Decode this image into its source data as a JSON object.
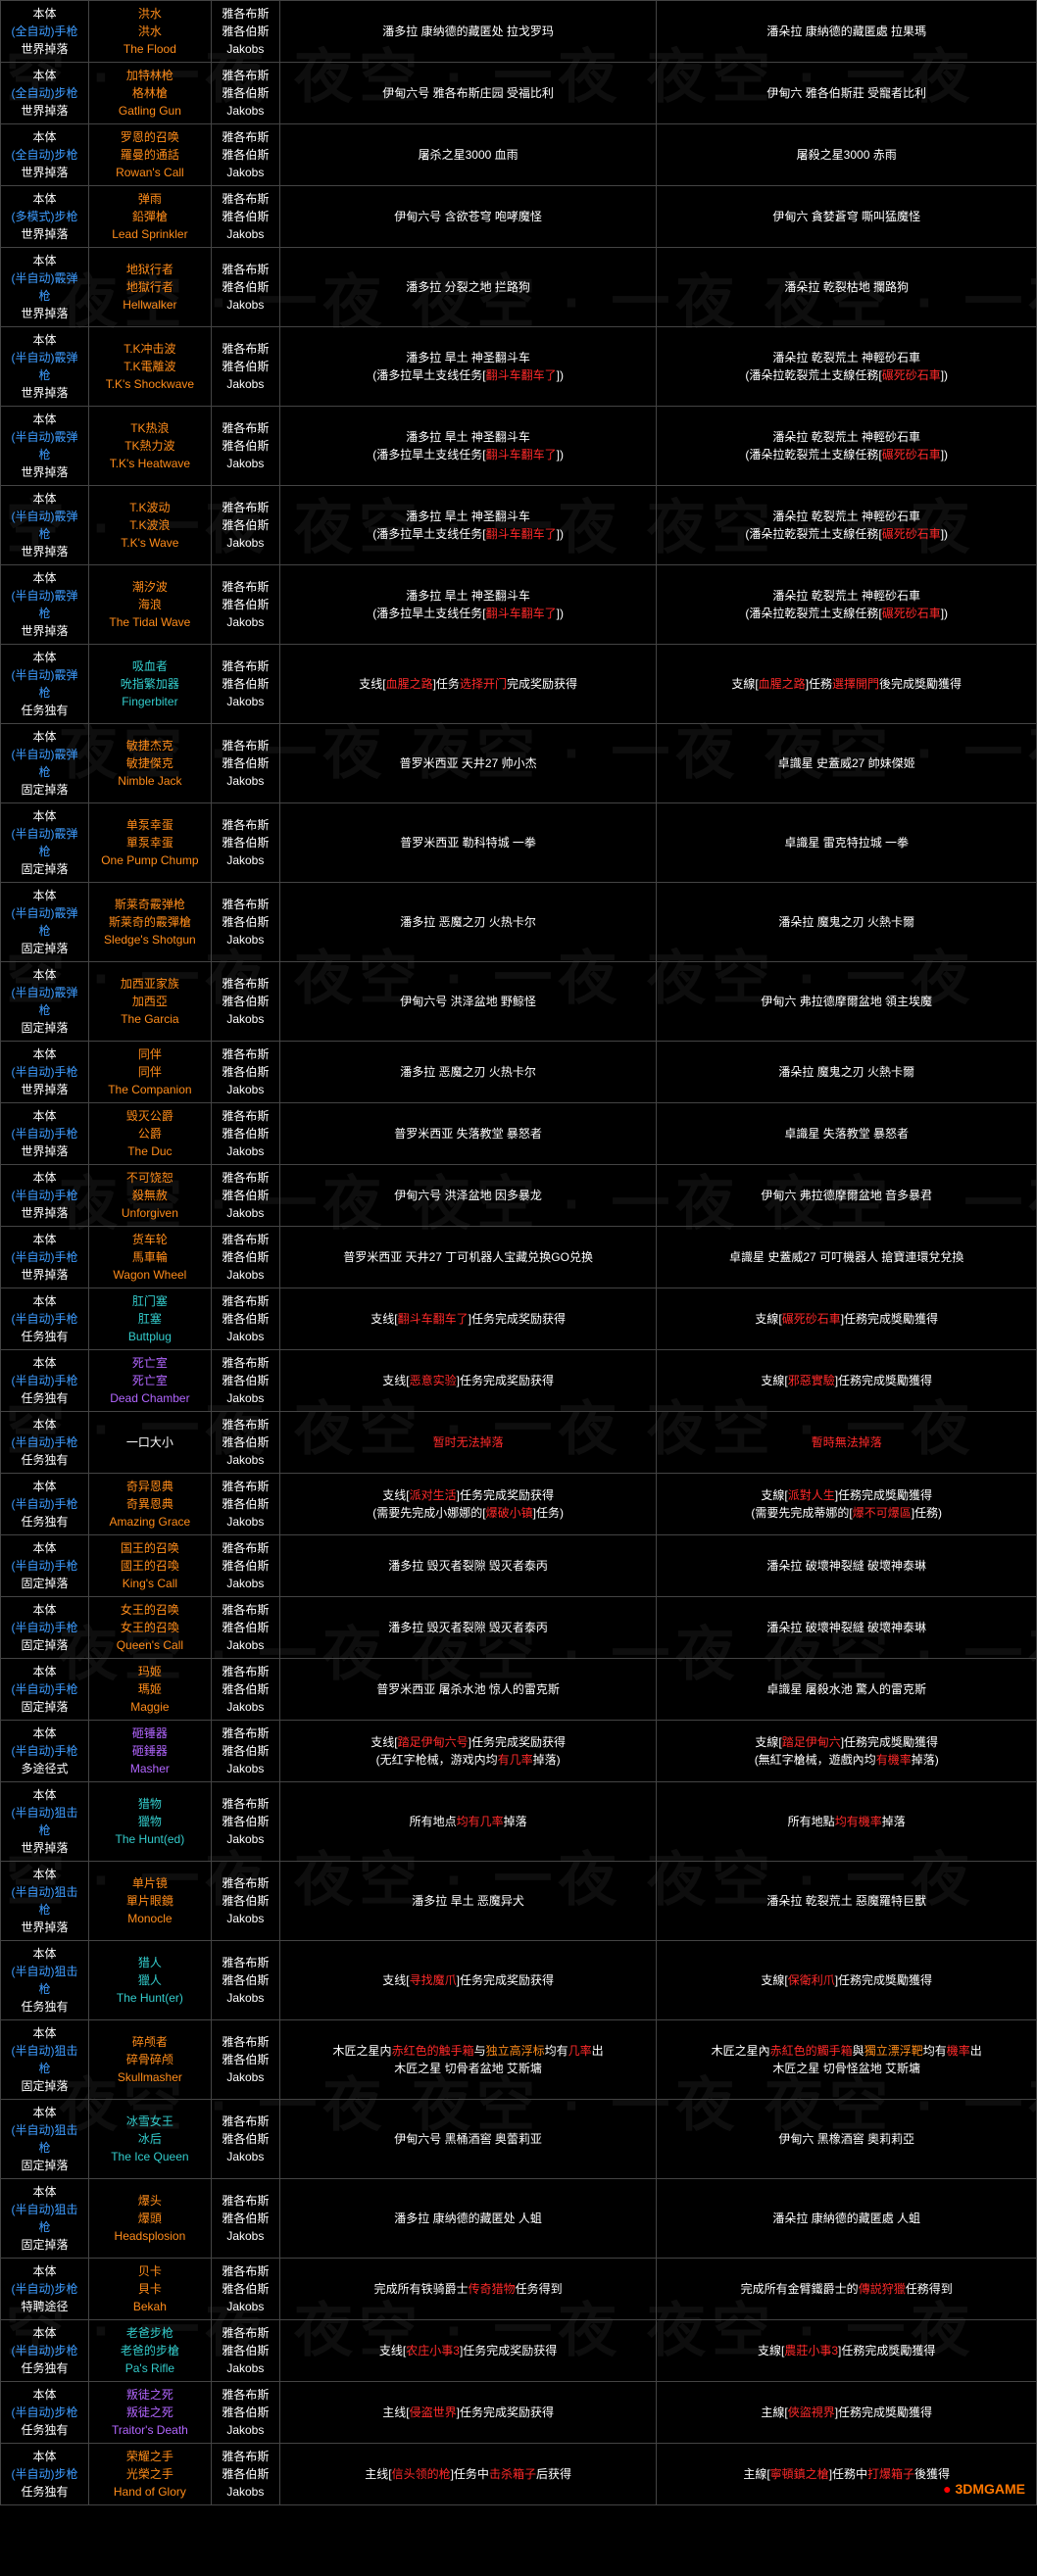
{
  "watermark_text": "夜空 · 一夜",
  "logo": "3DMGAME",
  "colors": {
    "bg": "#000000",
    "blue": "#3d9cff",
    "orange": "#ff8c1a",
    "white": "#ffffff",
    "red": "#ff2a2a",
    "purple": "#b266ff",
    "teal": "#33cccc",
    "border": "#444444"
  },
  "col1_labels": {
    "line1": "本体",
    "line3a": "世界掉落",
    "line3b": "固定掉落",
    "line3c": "任务独有",
    "line3d": "特聘途径",
    "line3e": "多途径式"
  },
  "col3_labels": {
    "l1": "雅各布斯",
    "l2": "雅各伯斯",
    "l3": "Jakobs"
  },
  "rows": [
    {
      "c1b": "(全自动)手枪",
      "c1c": "世界掉落",
      "c2": [
        "洪水",
        "洪水",
        "The Flood"
      ],
      "c2c": "orange",
      "c4": [
        {
          "t": "潘多拉 康纳德的藏匿处 拉戈罗玛"
        }
      ],
      "c5": [
        {
          "t": "潘朵拉 康納德的藏匿處 拉果瑪"
        }
      ]
    },
    {
      "c1b": "(全自动)步枪",
      "c1c": "世界掉落",
      "c2": [
        "加特林枪",
        "格林槍",
        "Gatling Gun"
      ],
      "c2c": "orange",
      "c4": [
        {
          "t": "伊甸六号 雅各布斯庄园 受福比利"
        }
      ],
      "c5": [
        {
          "t": "伊甸六 雅各伯斯莊 受寵者比利"
        }
      ]
    },
    {
      "c1b": "(全自动)步枪",
      "c1c": "世界掉落",
      "c2": [
        "罗恩的召唤",
        "羅曼的通話",
        "Rowan's Call"
      ],
      "c2c": "orange",
      "c4": [
        {
          "t": "屠杀之星3000 血雨"
        }
      ],
      "c5": [
        {
          "t": "屠殺之星3000 赤雨"
        }
      ]
    },
    {
      "c1b": "(多模式)步枪",
      "c1c": "世界掉落",
      "c2": [
        "弹雨",
        "鉛彈槍",
        "Lead Sprinkler"
      ],
      "c2c": "orange",
      "c4": [
        {
          "t": "伊甸六号 含欲苍穹 咆哮魔怪"
        }
      ],
      "c5": [
        {
          "t": "伊甸六 貪婪蒼穹 嘶叫猛魔怪"
        }
      ]
    },
    {
      "c1b": "(半自动)霰弹枪",
      "c1c": "世界掉落",
      "c2": [
        "地狱行者",
        "地獄行者",
        "Hellwalker"
      ],
      "c2c": "orange",
      "c4": [
        {
          "t": "潘多拉 分裂之地 拦路狗"
        }
      ],
      "c5": [
        {
          "t": "潘朵拉 乾裂枯地 攔路狗"
        }
      ]
    },
    {
      "c1b": "(半自动)霰弹枪",
      "c1c": "世界掉落",
      "c2": [
        "T.K冲击波",
        "T.K電離波",
        "T.K's Shockwave"
      ],
      "c2c": "orange",
      "c4": [
        {
          "t": "潘多拉 旱土 神圣翻斗车"
        },
        {
          "t": "(潘多拉旱土支线任务["
        },
        {
          "t": "翻斗车翻车了",
          "c": "red"
        },
        {
          "t": "])"
        }
      ],
      "c5": [
        {
          "t": "潘朵拉 乾裂荒土 神輕砂石車"
        },
        {
          "t": "(潘朵拉乾裂荒土支線任務["
        },
        {
          "t": "碾死砂石車",
          "c": "red"
        },
        {
          "t": "])"
        }
      ],
      "c4m": true,
      "c5m": true
    },
    {
      "c1b": "(半自动)霰弹枪",
      "c1c": "世界掉落",
      "c2": [
        "TK热浪",
        "TK熱力波",
        "T.K's Heatwave"
      ],
      "c2c": "orange",
      "c4": [
        {
          "t": "潘多拉 旱土 神圣翻斗车"
        },
        {
          "t": "(潘多拉旱土支线任务["
        },
        {
          "t": "翻斗车翻车了",
          "c": "red"
        },
        {
          "t": "])"
        }
      ],
      "c5": [
        {
          "t": "潘朵拉 乾裂荒土 神輕砂石車"
        },
        {
          "t": "(潘朵拉乾裂荒土支線任務["
        },
        {
          "t": "碾死砂石車",
          "c": "red"
        },
        {
          "t": "])"
        }
      ],
      "c4m": true,
      "c5m": true
    },
    {
      "c1b": "(半自动)霰弹枪",
      "c1c": "世界掉落",
      "c2": [
        "T.K波动",
        "T.K波浪",
        "T.K's Wave"
      ],
      "c2c": "orange",
      "c4": [
        {
          "t": "潘多拉 旱土 神圣翻斗车"
        },
        {
          "t": "(潘多拉旱土支线任务["
        },
        {
          "t": "翻斗车翻车了",
          "c": "red"
        },
        {
          "t": "])"
        }
      ],
      "c5": [
        {
          "t": "潘朵拉 乾裂荒土 神輕砂石車"
        },
        {
          "t": "(潘朵拉乾裂荒土支線任務["
        },
        {
          "t": "碾死砂石車",
          "c": "red"
        },
        {
          "t": "])"
        }
      ],
      "c4m": true,
      "c5m": true
    },
    {
      "c1b": "(半自动)霰弹枪",
      "c1c": "世界掉落",
      "c2": [
        "潮汐波",
        "海浪",
        "The Tidal Wave"
      ],
      "c2c": "orange",
      "c4": [
        {
          "t": "潘多拉 旱土 神圣翻斗车"
        },
        {
          "t": "(潘多拉旱土支线任务["
        },
        {
          "t": "翻斗车翻车了",
          "c": "red"
        },
        {
          "t": "])"
        }
      ],
      "c5": [
        {
          "t": "潘朵拉 乾裂荒土 神輕砂石車"
        },
        {
          "t": "(潘朵拉乾裂荒土支線任務["
        },
        {
          "t": "碾死砂石車",
          "c": "red"
        },
        {
          "t": "])"
        }
      ],
      "c4m": true,
      "c5m": true
    },
    {
      "c1b": "(半自动)霰弹枪",
      "c1c": "任务独有",
      "c2": [
        "吸血者",
        "吮指繁加器",
        "Fingerbiter"
      ],
      "c2c": "teal",
      "c4": [
        {
          "t": "支线["
        },
        {
          "t": "血腥之路",
          "c": "red"
        },
        {
          "t": "]任务"
        },
        {
          "t": "选择开门",
          "c": "red"
        },
        {
          "t": "完成奖励获得"
        }
      ],
      "c5": [
        {
          "t": "支線["
        },
        {
          "t": "血腥之路",
          "c": "red"
        },
        {
          "t": "]任務"
        },
        {
          "t": "選擇開門",
          "c": "red"
        },
        {
          "t": "後完成獎勵獲得"
        }
      ]
    },
    {
      "c1b": "(半自动)霰弹枪",
      "c1c": "固定掉落",
      "c2": [
        "敏捷杰克",
        "敏捷傑克",
        "Nimble Jack"
      ],
      "c2c": "orange",
      "c4": [
        {
          "t": "普罗米西亚 天井27 帅小杰"
        }
      ],
      "c5": [
        {
          "t": "卓識星 史蓋威27 帥妹傑姬"
        }
      ]
    },
    {
      "c1b": "(半自动)霰弹枪",
      "c1c": "固定掉落",
      "c2": [
        "单泵幸蛋",
        "單泵幸蛋",
        "One Pump Chump"
      ],
      "c2c": "orange",
      "c4": [
        {
          "t": "普罗米西亚 勒科特城 一拳"
        }
      ],
      "c5": [
        {
          "t": "卓識星 雷克特拉城 一拳"
        }
      ]
    },
    {
      "c1b": "(半自动)霰弹枪",
      "c1c": "固定掉落",
      "c2": [
        "斯莱奇霰弹枪",
        "斯莱奇的霰彈槍",
        "Sledge's Shotgun"
      ],
      "c2c": "orange",
      "c4": [
        {
          "t": "潘多拉 恶魔之刃 火热卡尔"
        }
      ],
      "c5": [
        {
          "t": "潘朵拉 魔鬼之刃 火熱卡爾"
        }
      ]
    },
    {
      "c1b": "(半自动)霰弹枪",
      "c1c": "固定掉落",
      "c2": [
        "加西亚家族",
        "加西亞",
        "The Garcia"
      ],
      "c2c": "orange",
      "c4": [
        {
          "t": "伊甸六号 洪泽盆地 野鲸怪"
        }
      ],
      "c5": [
        {
          "t": "伊甸六 弗拉德摩爾盆地 領主埃魔"
        }
      ]
    },
    {
      "c1b": "(半自动)手枪",
      "c1c": "世界掉落",
      "c2": [
        "同伴",
        "同伴",
        "The Companion"
      ],
      "c2c": "orange",
      "c4": [
        {
          "t": "潘多拉 恶魔之刃 火热卡尔"
        }
      ],
      "c5": [
        {
          "t": "潘朵拉 魔鬼之刃 火熱卡爾"
        }
      ]
    },
    {
      "c1b": "(半自动)手枪",
      "c1c": "世界掉落",
      "c2": [
        "毁灭公爵",
        "公爵",
        "The Duc"
      ],
      "c2c": "orange",
      "c4": [
        {
          "t": "普罗米西亚 失落教堂 暴怒者"
        }
      ],
      "c5": [
        {
          "t": "卓識星 失落教堂 暴怒者"
        }
      ]
    },
    {
      "c1b": "(半自动)手枪",
      "c1c": "世界掉落",
      "c2": [
        "不可饶恕",
        "殺無赦",
        "Unforgiven"
      ],
      "c2c": "orange",
      "c4": [
        {
          "t": "伊甸六号 洪泽盆地 因多暴龙"
        }
      ],
      "c5": [
        {
          "t": "伊甸六 弗拉德摩爾盆地 音多暴君"
        }
      ]
    },
    {
      "c1b": "(半自动)手枪",
      "c1c": "世界掉落",
      "c2": [
        "货车轮",
        "馬車輪",
        "Wagon Wheel"
      ],
      "c2c": "orange",
      "c4": [
        {
          "t": "普罗米西亚 天井27 丁可机器人宝藏兑换GO兑换"
        }
      ],
      "c5": [
        {
          "t": "卓識星 史蓋威27 可叮機器人 搶寶連環兌兌換"
        }
      ]
    },
    {
      "c1b": "(半自动)手枪",
      "c1c": "任务独有",
      "c2": [
        "肛门塞",
        "肛塞",
        "Buttplug"
      ],
      "c2c": "teal",
      "c4": [
        {
          "t": "支线["
        },
        {
          "t": "翻斗车翻车了",
          "c": "red"
        },
        {
          "t": "]任务完成奖励获得"
        }
      ],
      "c5": [
        {
          "t": "支線["
        },
        {
          "t": "碾死砂石車",
          "c": "red"
        },
        {
          "t": "]任務完成獎勵獲得"
        }
      ]
    },
    {
      "c1b": "(半自动)手枪",
      "c1c": "任务独有",
      "c2": [
        "死亡室",
        "死亡室",
        "Dead Chamber"
      ],
      "c2c": "purple",
      "c4": [
        {
          "t": "支线["
        },
        {
          "t": "恶意实验",
          "c": "red"
        },
        {
          "t": "]任务完成奖励获得"
        }
      ],
      "c5": [
        {
          "t": "支線["
        },
        {
          "t": "邪惡實驗",
          "c": "red"
        },
        {
          "t": "]任務完成獎勵獲得"
        }
      ]
    },
    {
      "c1b": "(半自动)手枪",
      "c1c": "任务独有",
      "c2": [
        "",
        "一口大小",
        ""
      ],
      "c2c": "white",
      "c4": [
        {
          "t": "暂时无法掉落",
          "c": "red"
        }
      ],
      "c5": [
        {
          "t": "暫時無法掉落",
          "c": "red"
        }
      ]
    },
    {
      "c1b": "(半自动)手枪",
      "c1c": "任务独有",
      "c2": [
        "奇异恩典",
        "奇異恩典",
        "Amazing Grace"
      ],
      "c2c": "orange",
      "c4": [
        {
          "t": "支线["
        },
        {
          "t": "派对生活",
          "c": "red"
        },
        {
          "t": "]任务完成奖励获得"
        },
        {
          "t": "(需要先完成小娜娜的["
        },
        {
          "t": "爆破小镇",
          "c": "red"
        },
        {
          "t": "]任务)"
        }
      ],
      "c5": [
        {
          "t": "支線["
        },
        {
          "t": "派對人生",
          "c": "red"
        },
        {
          "t": "]任務完成獎勵獲得"
        },
        {
          "t": "(需要先完成蒂娜的["
        },
        {
          "t": "爆不可爆區",
          "c": "red"
        },
        {
          "t": "]任務)"
        }
      ],
      "c4m": true,
      "c5m": true
    },
    {
      "c1b": "(半自动)手枪",
      "c1c": "固定掉落",
      "c2": [
        "国王的召唤",
        "國王的召喚",
        "King's Call"
      ],
      "c2c": "orange",
      "c4": [
        {
          "t": "潘多拉 毁灭者裂隙 毁灭者泰丙"
        }
      ],
      "c5": [
        {
          "t": "潘朵拉 破壞神裂縫 破壞神泰琳"
        }
      ]
    },
    {
      "c1b": "(半自动)手枪",
      "c1c": "固定掉落",
      "c2": [
        "女王的召唤",
        "女王的召喚",
        "Queen's Call"
      ],
      "c2c": "orange",
      "c4": [
        {
          "t": "潘多拉 毁灭者裂隙 毁灭者泰丙"
        }
      ],
      "c5": [
        {
          "t": "潘朵拉 破壞神裂縫 破壞神泰琳"
        }
      ]
    },
    {
      "c1b": "(半自动)手枪",
      "c1c": "固定掉落",
      "c2": [
        "玛姬",
        "瑪姬",
        "Maggie"
      ],
      "c2c": "orange",
      "c4": [
        {
          "t": "普罗米西亚 屠杀水池 惊人的雷克斯"
        }
      ],
      "c5": [
        {
          "t": "卓識星 屠殺水池 驚人的雷克斯"
        }
      ]
    },
    {
      "c1b": "(半自动)手枪",
      "c1c": "多途径式",
      "c2": [
        "砸锤器",
        "砸錘器",
        "Masher"
      ],
      "c2c": "purple",
      "c4": [
        {
          "t": "支线["
        },
        {
          "t": "踏足伊甸六号",
          "c": "red"
        },
        {
          "t": "]任务完成奖励获得"
        },
        {
          "t": "(无红字枪械，游戏内均"
        },
        {
          "t": "有几率",
          "c": "red"
        },
        {
          "t": "掉落)"
        }
      ],
      "c5": [
        {
          "t": "支線["
        },
        {
          "t": "踏足伊甸六",
          "c": "red"
        },
        {
          "t": "]任務完成獎勵獲得"
        },
        {
          "t": "(無紅字槍械，遊戲內均"
        },
        {
          "t": "有機率",
          "c": "red"
        },
        {
          "t": "掉落)"
        }
      ],
      "c4m": true,
      "c5m": true
    },
    {
      "c1b": "(半自动)狙击枪",
      "c1c": "世界掉落",
      "c2": [
        "猎物",
        "獵物",
        "The Hunt(ed)"
      ],
      "c2c": "teal",
      "c4": [
        {
          "t": "所有地点"
        },
        {
          "t": "均有几率",
          "c": "red"
        },
        {
          "t": "掉落"
        }
      ],
      "c5": [
        {
          "t": "所有地點"
        },
        {
          "t": "均有機率",
          "c": "red"
        },
        {
          "t": "掉落"
        }
      ]
    },
    {
      "c1b": "(半自动)狙击枪",
      "c1c": "世界掉落",
      "c2": [
        "单片镜",
        "單片眼鏡",
        "Monocle"
      ],
      "c2c": "orange",
      "c4": [
        {
          "t": "潘多拉 旱土 恶魔异犬"
        }
      ],
      "c5": [
        {
          "t": "潘朵拉 乾裂荒土 惡魔羅特巨獸"
        }
      ]
    },
    {
      "c1b": "(半自动)狙击枪",
      "c1c": "任务独有",
      "c2": [
        "猎人",
        "獵人",
        "The Hunt(er)"
      ],
      "c2c": "teal",
      "c4": [
        {
          "t": "支线["
        },
        {
          "t": "寻找魔爪",
          "c": "red"
        },
        {
          "t": "]任务完成奖励获得"
        }
      ],
      "c5": [
        {
          "t": "支線["
        },
        {
          "t": "保衛利爪",
          "c": "red"
        },
        {
          "t": "]任務完成獎勵獲得"
        }
      ]
    },
    {
      "c1b": "(半自动)狙击枪",
      "c1c": "固定掉落",
      "c2": [
        "碎颅者",
        "碎骨碎颅",
        "Skullmasher"
      ],
      "c2c": "orange",
      "c4": [
        {
          "t": "木匠之星内"
        },
        {
          "t": "赤红色的触手箱",
          "c": "red"
        },
        {
          "t": "与"
        },
        {
          "t": "独立高浮标",
          "c": "orange"
        },
        {
          "t": "均有"
        },
        {
          "t": "几率",
          "c": "red"
        },
        {
          "t": "出"
        },
        {
          "t": "木匠之星 切骨者盆地 艾斯墉"
        }
      ],
      "c5": [
        {
          "t": "木匠之星內"
        },
        {
          "t": "赤紅色的觸手箱",
          "c": "red"
        },
        {
          "t": "與"
        },
        {
          "t": "獨立漂浮靶",
          "c": "orange"
        },
        {
          "t": "均有"
        },
        {
          "t": "機率",
          "c": "red"
        },
        {
          "t": "出"
        },
        {
          "t": "木匠之星 切骨怪盆地 艾斯墉"
        }
      ],
      "c4m": true,
      "c5m": true
    },
    {
      "c1b": "(半自动)狙击枪",
      "c1c": "固定掉落",
      "c2": [
        "冰雪女王",
        "冰后",
        "The Ice Queen"
      ],
      "c2c": "teal",
      "c4": [
        {
          "t": "伊甸六号 黑桶酒窖 奥蕾莉亚"
        }
      ],
      "c5": [
        {
          "t": "伊甸六 黑橡酒窖 奧莉莉亞"
        }
      ]
    },
    {
      "c1b": "(半自动)狙击枪",
      "c1c": "固定掉落",
      "c2": [
        "爆头",
        "爆頭",
        "Headsplosion"
      ],
      "c2c": "orange",
      "c4": [
        {
          "t": "潘多拉 康纳德的藏匿处 人蛆"
        }
      ],
      "c5": [
        {
          "t": "潘朵拉 康納德的藏匿處 人蛆"
        }
      ]
    },
    {
      "c1b": "(半自动)步枪",
      "c1c": "特聘途径",
      "c2": [
        "贝卡",
        "貝卡",
        "Bekah"
      ],
      "c2c": "orange",
      "c4": [
        {
          "t": "完成所有铁骑爵士"
        },
        {
          "t": "传奇猎物",
          "c": "red"
        },
        {
          "t": "任务得到"
        }
      ],
      "c5": [
        {
          "t": "完成所有金臂鐵爵士的"
        },
        {
          "t": "傳説狩獵",
          "c": "red"
        },
        {
          "t": "任務得到"
        }
      ]
    },
    {
      "c1b": "(半自动)步枪",
      "c1c": "任务独有",
      "c2": [
        "老爸步枪",
        "老爸的步槍",
        "Pa's Rifle"
      ],
      "c2c": "teal",
      "c4": [
        {
          "t": "支线["
        },
        {
          "t": "农庄小事3",
          "c": "red"
        },
        {
          "t": "]任务完成奖励获得"
        }
      ],
      "c5": [
        {
          "t": "支線["
        },
        {
          "t": "農莊小事3",
          "c": "red"
        },
        {
          "t": "]任務完成獎勵獲得"
        }
      ]
    },
    {
      "c1b": "(半自动)步枪",
      "c1c": "任务独有",
      "c2": [
        "叛徒之死",
        "叛徒之死",
        "Traitor's Death"
      ],
      "c2c": "purple",
      "c4": [
        {
          "t": "主线["
        },
        {
          "t": "侵盗世界",
          "c": "red"
        },
        {
          "t": "]任务完成奖励获得"
        }
      ],
      "c5": [
        {
          "t": "主線["
        },
        {
          "t": "俠盜視界",
          "c": "red"
        },
        {
          "t": "]任務完成獎勵獲得"
        }
      ]
    },
    {
      "c1b": "(半自动)步枪",
      "c1c": "任务独有",
      "c2": [
        "荣耀之手",
        "光榮之手",
        "Hand of Glory"
      ],
      "c2c": "orange",
      "c4": [
        {
          "t": "主线["
        },
        {
          "t": "信头领的枪",
          "c": "red"
        },
        {
          "t": "]任务中"
        },
        {
          "t": "击杀箱子",
          "c": "red"
        },
        {
          "t": "后获得"
        }
      ],
      "c5": [
        {
          "t": "主線["
        },
        {
          "t": "寧頓鎮之槍",
          "c": "red"
        },
        {
          "t": "]任務中"
        },
        {
          "t": "打爆箱子",
          "c": "red"
        },
        {
          "t": "後獲得"
        }
      ]
    }
  ]
}
